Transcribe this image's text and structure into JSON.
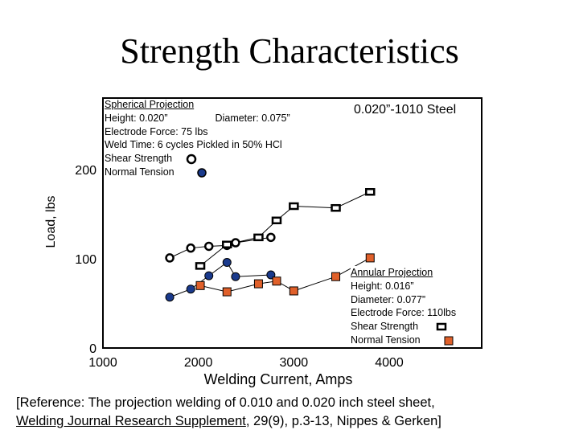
{
  "title": "Strength Characteristics",
  "chart_data": {
    "type": "scatter",
    "xlabel": "Welding Current, Amps",
    "ylabel": "Load, lbs",
    "xlim": [
      1000,
      4000
    ],
    "ylim": [
      0,
      200
    ],
    "xticks": [
      "1000",
      "2000",
      "3000",
      "4000"
    ],
    "yticks": [
      "0",
      "100",
      "200"
    ],
    "series": [
      {
        "name": "Shear Strength",
        "group": "spherical",
        "marker": "circle-open",
        "color": "#000000",
        "x": [
          1700,
          1920,
          2110,
          2300,
          2390,
          2760
        ],
        "y": [
          101,
          112,
          114,
          115,
          118,
          124
        ]
      },
      {
        "name": "Normal Tension",
        "group": "spherical",
        "marker": "circle-filled",
        "color": "#1a3a8c",
        "x": [
          1700,
          1920,
          2110,
          2300,
          2390,
          2760
        ],
        "y": [
          57,
          66,
          81,
          96,
          80,
          82
        ]
      },
      {
        "name": "Shear Strength",
        "group": "annular",
        "marker": "square-open",
        "color": "#000000",
        "x": [
          2020,
          2300,
          2630,
          2820,
          3000,
          3440,
          3800
        ],
        "y": [
          92,
          116,
          124,
          143,
          159,
          157,
          175
        ]
      },
      {
        "name": "Normal Tension",
        "group": "annular",
        "marker": "square-filled",
        "color": "#e0602a",
        "x": [
          2020,
          2300,
          2630,
          2820,
          3000,
          3440,
          3800
        ],
        "y": [
          70,
          63,
          72,
          75,
          64,
          80,
          101
        ]
      }
    ]
  },
  "spherical_box": {
    "lines": [
      "Spherical Projection",
      "Height: 0.020”                 Diameter: 0.075”",
      "Electrode Force: 75 lbs",
      "Weld Time: 6 cycles   Pickled in 50%  HCl",
      "Shear Strength",
      "Normal Tension"
    ]
  },
  "steel_label": "0.020”-1010 Steel",
  "annular_box": {
    "lines": [
      "Annular Projection",
      "Height: 0.016”",
      "Diameter: 0.077”",
      "Electrode Force: 110lbs",
      "Shear Strength",
      "Normal Tension"
    ]
  },
  "reference": {
    "line1": "[Reference:  The projection welding of 0.010 and 0.020 inch steel sheet,",
    "journal": "Welding Journal Research Supplement",
    "line2_rest": ", 29(9), p.3-13, Nippes & Gerken]"
  }
}
